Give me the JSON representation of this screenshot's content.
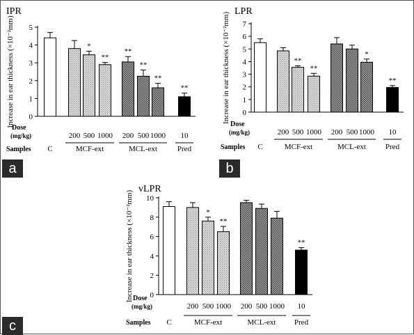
{
  "colors": {
    "control": "#ffffff",
    "mcf": "#c8c8c8",
    "mcl": "#8c8c8c",
    "pred": "#000000"
  },
  "chart_data": [
    {
      "panel_letter": "a",
      "type": "bar",
      "title": "IPR",
      "ylabel": "Increase in ear thickness (×10⁻²mm)",
      "ylim": [
        0,
        5
      ],
      "yticks": [
        0,
        1,
        2,
        3,
        4,
        5
      ],
      "dose_label": "Dose",
      "dose_unit": "(mg/kg)",
      "samples_label": "Samples",
      "categories": [
        "C",
        "MCF-ext 200",
        "MCF-ext 500",
        "MCF-ext 1000",
        "MCL-ext 200",
        "MCL-ext 500",
        "MCL-ext 1000",
        "Pred 10"
      ],
      "doses": [
        "",
        "200",
        "500",
        "1000",
        "200",
        "500",
        "1000",
        "10"
      ],
      "groups": [
        {
          "label": "C",
          "first": 0,
          "last": 0,
          "underline": false
        },
        {
          "label": "MCF-ext",
          "first": 1,
          "last": 3,
          "underline": true
        },
        {
          "label": "MCL-ext",
          "first": 4,
          "last": 6,
          "underline": true
        },
        {
          "label": "Pred",
          "first": 7,
          "last": 7,
          "underline": true
        }
      ],
      "values": [
        4.4,
        3.8,
        3.45,
        2.9,
        3.05,
        2.25,
        1.6,
        1.1
      ],
      "errors": [
        0.3,
        0.45,
        0.2,
        0.12,
        0.3,
        0.35,
        0.25,
        0.2
      ],
      "significance": [
        "",
        "",
        "*",
        "**",
        "**",
        "**",
        "**",
        "**"
      ],
      "fills": [
        "control",
        "mcf",
        "mcf",
        "mcf",
        "mcl",
        "mcl",
        "mcl",
        "pred"
      ]
    },
    {
      "panel_letter": "b",
      "type": "bar",
      "title": "LPR",
      "ylabel": "Increase in ear thickness (×10⁻²mm)",
      "ylim": [
        0,
        7
      ],
      "yticks": [
        0,
        1,
        2,
        3,
        4,
        5,
        6,
        7
      ],
      "dose_label": "Dose",
      "dose_unit": "(mg/kg)",
      "samples_label": "Samples",
      "categories": [
        "C",
        "MCF-ext 200",
        "MCF-ext 500",
        "MCF-ext 1000",
        "MCL-ext 200",
        "MCL-ext 500",
        "MCL-ext 1000",
        "Pred 10"
      ],
      "doses": [
        "",
        "200",
        "500",
        "1000",
        "200",
        "500",
        "1000",
        "10"
      ],
      "groups": [
        {
          "label": "C",
          "first": 0,
          "last": 0,
          "underline": false
        },
        {
          "label": "MCF-ext",
          "first": 1,
          "last": 3,
          "underline": true
        },
        {
          "label": "MCL-ext",
          "first": 4,
          "last": 6,
          "underline": true
        },
        {
          "label": "Pred",
          "first": 7,
          "last": 7,
          "underline": true
        }
      ],
      "values": [
        5.5,
        4.85,
        3.55,
        2.85,
        5.4,
        5.0,
        3.95,
        1.95
      ],
      "errors": [
        0.3,
        0.25,
        0.12,
        0.22,
        0.5,
        0.3,
        0.25,
        0.15
      ],
      "significance": [
        "",
        "",
        "**",
        "**",
        "",
        "",
        "*",
        "**"
      ],
      "fills": [
        "control",
        "mcf",
        "mcf",
        "mcf",
        "mcl",
        "mcl",
        "mcl",
        "pred"
      ]
    },
    {
      "panel_letter": "c",
      "type": "bar",
      "title": "vLPR",
      "ylabel": "Increase in ear thickness (×10⁻²mm)",
      "ylim": [
        0,
        10
      ],
      "yticks": [
        0,
        2,
        4,
        6,
        8,
        10
      ],
      "dose_label": "Dose",
      "dose_unit": "(mg/kg)",
      "samples_label": "Samples",
      "categories": [
        "C",
        "MCF-ext 200",
        "MCF-ext 500",
        "MCF-ext 1000",
        "MCL-ext 200",
        "MCL-ext 500",
        "MCL-ext 1000",
        "Pred 10"
      ],
      "doses": [
        "",
        "200",
        "500",
        "1000",
        "200",
        "500",
        "1000",
        "10"
      ],
      "groups": [
        {
          "label": "C",
          "first": 0,
          "last": 0,
          "underline": false
        },
        {
          "label": "MCF-ext",
          "first": 1,
          "last": 3,
          "underline": true
        },
        {
          "label": "MCL-ext",
          "first": 4,
          "last": 6,
          "underline": true
        },
        {
          "label": "Pred",
          "first": 7,
          "last": 7,
          "underline": true
        }
      ],
      "values": [
        9.1,
        9.0,
        7.6,
        6.5,
        9.5,
        8.9,
        7.9,
        4.6
      ],
      "errors": [
        0.5,
        0.5,
        0.4,
        0.55,
        0.25,
        0.45,
        0.7,
        0.25
      ],
      "significance": [
        "",
        "",
        "*",
        "**",
        "",
        "",
        "",
        "**"
      ],
      "fills": [
        "control",
        "mcf",
        "mcf",
        "mcf",
        "mcl",
        "mcl",
        "mcl",
        "pred"
      ]
    }
  ]
}
